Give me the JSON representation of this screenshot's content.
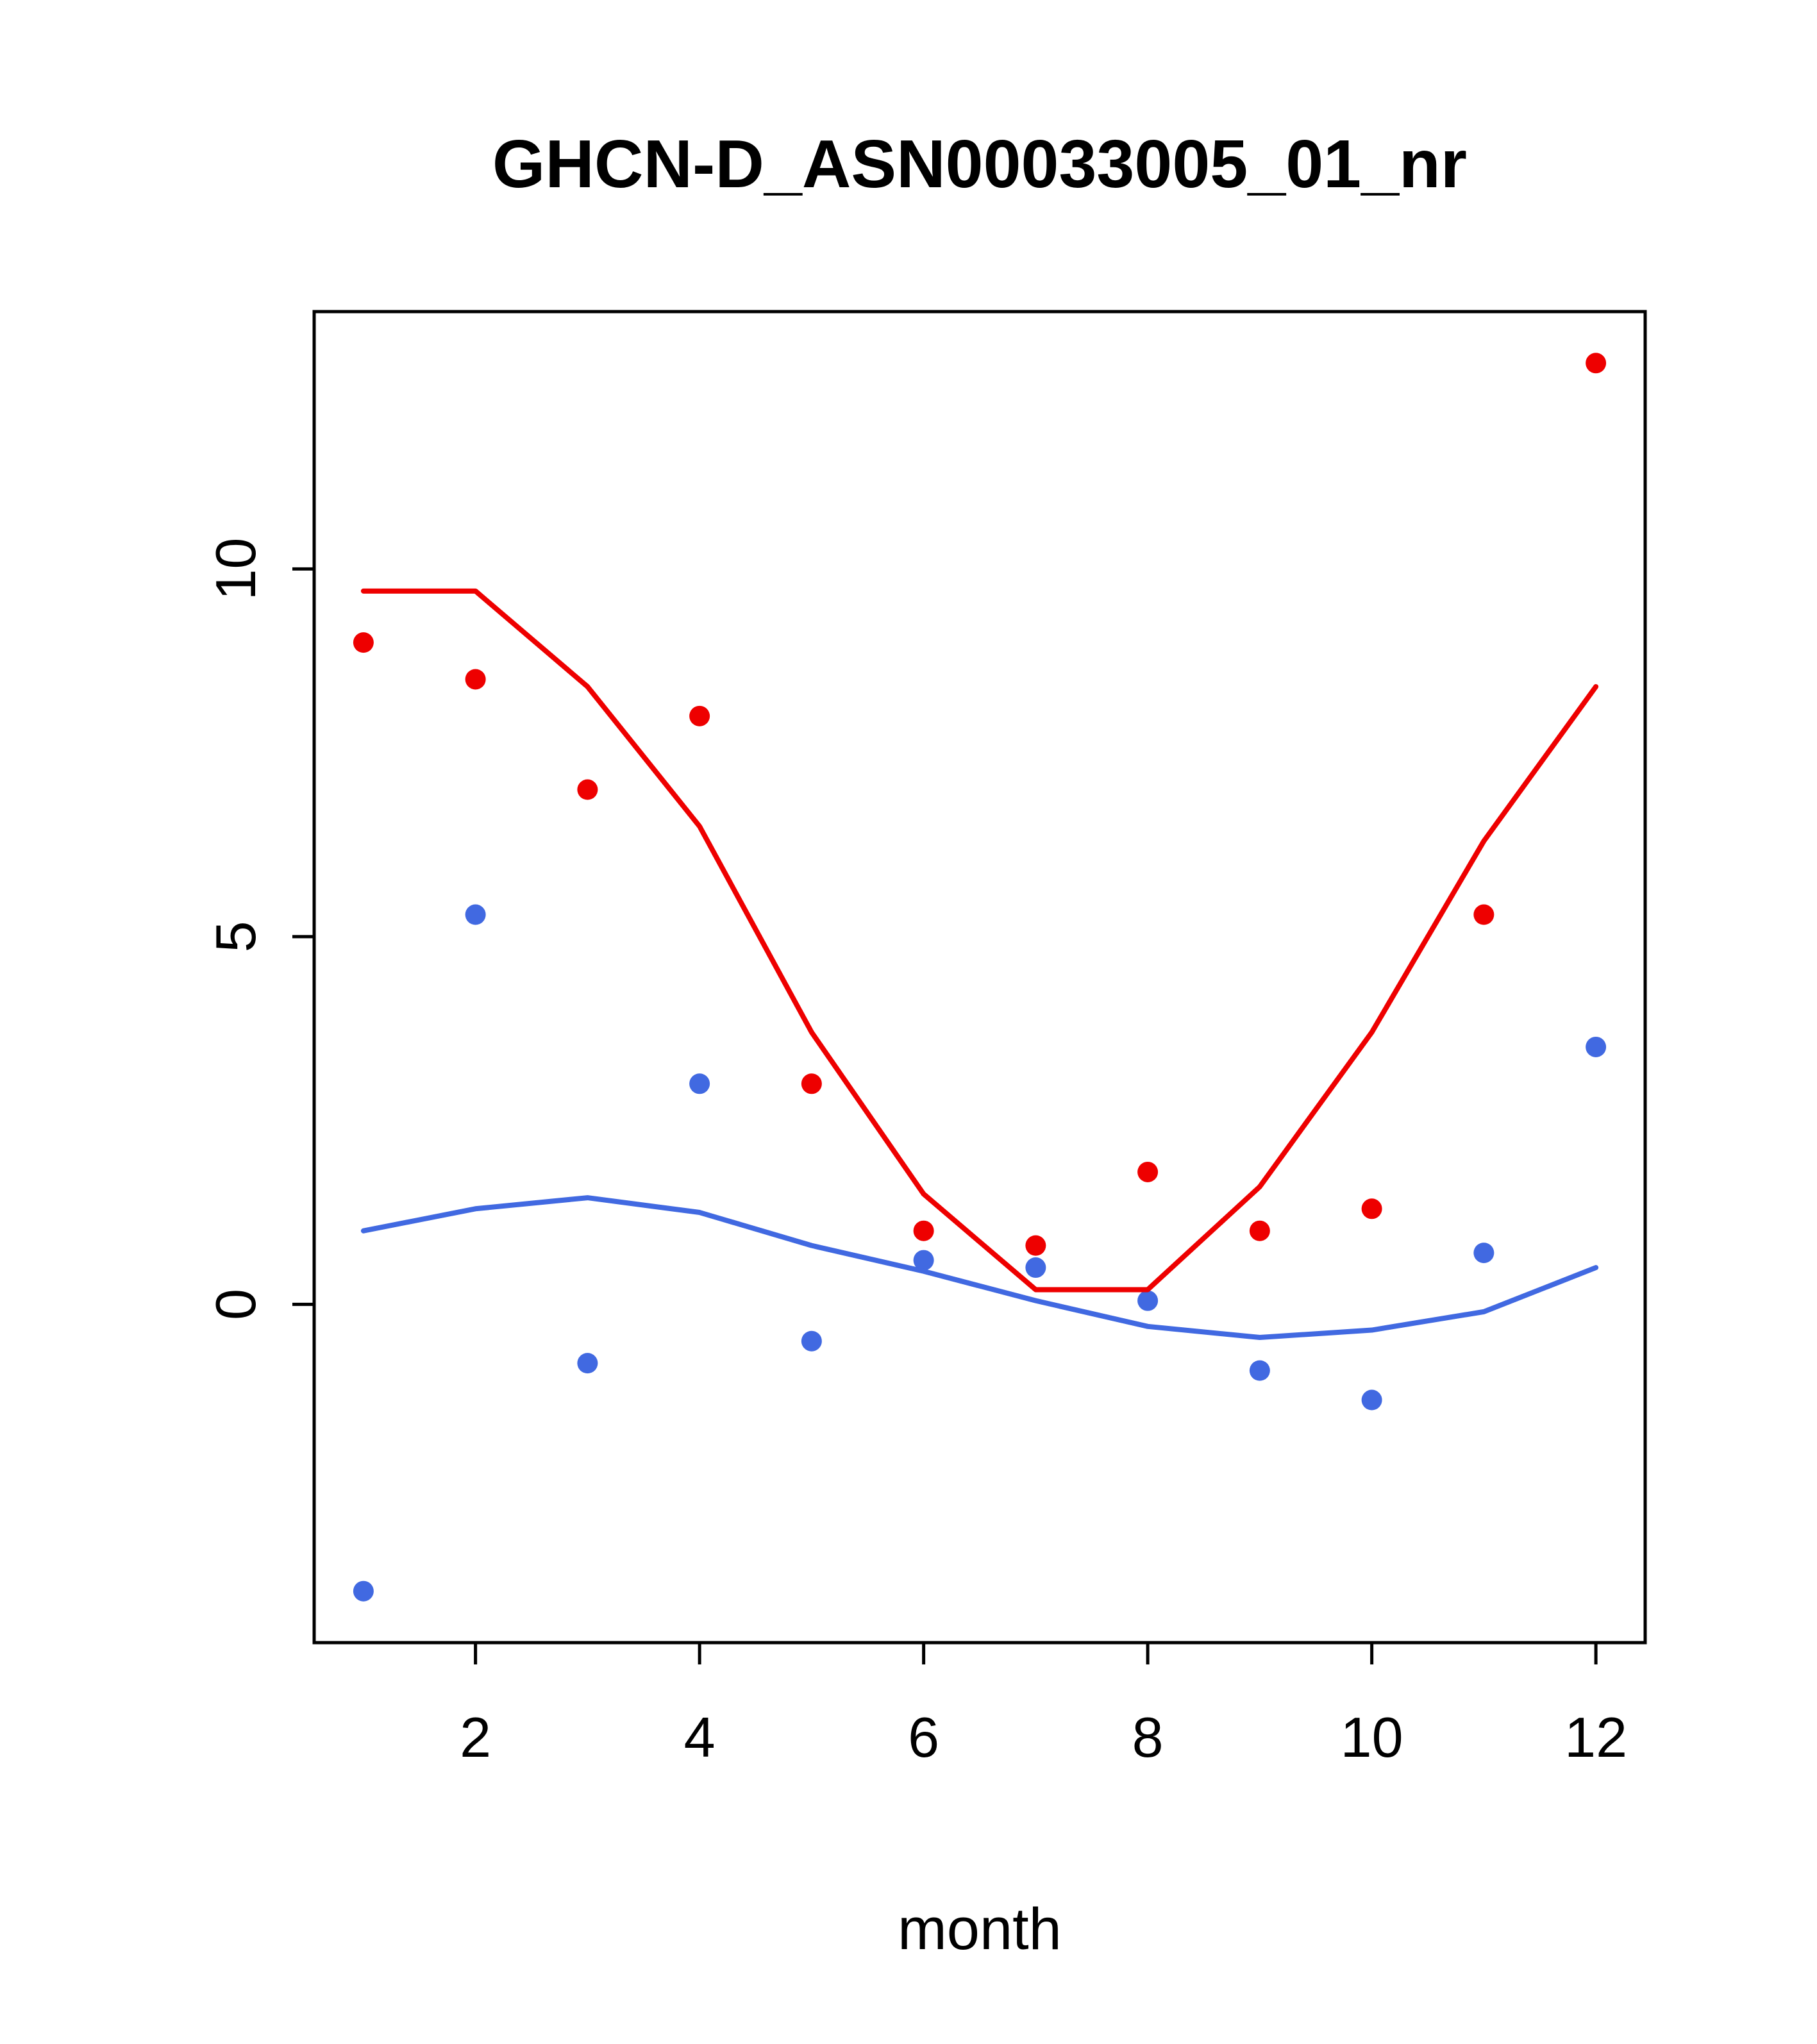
{
  "title": "GHCN-D_ASN00033005_01_nr",
  "xlabel": "month",
  "chart_data": {
    "type": "scatter",
    "title": "GHCN-D_ASN00033005_01_nr",
    "xlabel": "month",
    "ylabel": "",
    "grid": false,
    "legend_position": "none",
    "x": [
      1,
      2,
      3,
      4,
      5,
      6,
      7,
      8,
      9,
      10,
      11,
      12
    ],
    "x_ticks": [
      2,
      4,
      6,
      8,
      10,
      12
    ],
    "y_ticks": [
      0,
      5,
      10
    ],
    "xlim": [
      0.56,
      12.44
    ],
    "ylim": [
      -4.6,
      13.5
    ],
    "colors": {
      "red": "#ee0000",
      "blue": "#4169e1"
    },
    "series": [
      {
        "name": "red-points",
        "kind": "points",
        "color": "#ee0000",
        "values": [
          9.0,
          8.5,
          7.0,
          8.0,
          3.0,
          1.0,
          0.8,
          1.8,
          1.0,
          1.3,
          5.3,
          12.8
        ]
      },
      {
        "name": "blue-points",
        "kind": "points",
        "color": "#4169e1",
        "values": [
          -3.9,
          5.3,
          -0.8,
          3.0,
          -0.5,
          0.6,
          0.5,
          0.05,
          -0.9,
          -1.3,
          0.7,
          3.5
        ]
      },
      {
        "name": "red-line",
        "kind": "line",
        "color": "#ee0000",
        "values": [
          9.7,
          9.7,
          8.4,
          6.5,
          3.7,
          1.5,
          0.2,
          0.2,
          1.6,
          3.7,
          6.3,
          8.4
        ]
      },
      {
        "name": "blue-line",
        "kind": "line",
        "color": "#4169e1",
        "values": [
          1.0,
          1.3,
          1.45,
          1.25,
          0.8,
          0.45,
          0.05,
          -0.3,
          -0.45,
          -0.35,
          -0.1,
          0.5
        ]
      }
    ]
  }
}
